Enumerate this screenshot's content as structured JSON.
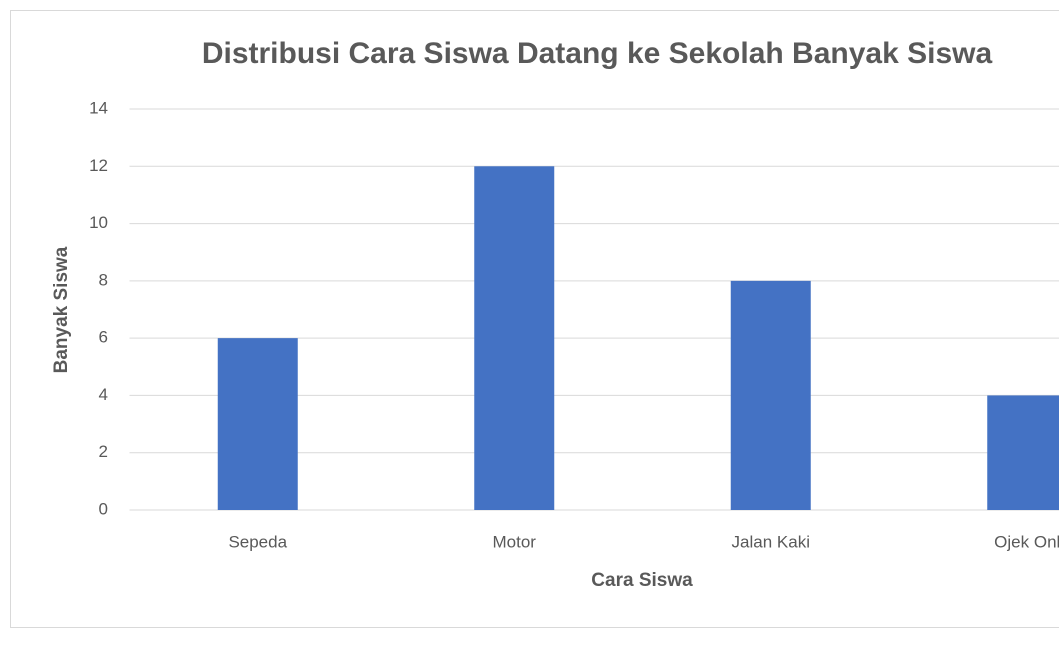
{
  "chart_data": {
    "type": "bar",
    "title": "Distribusi Cara Siswa Datang ke Sekolah Banyak Siswa",
    "x_label": "Cara Siswa",
    "y_label": "Banyak Siswa",
    "categories": [
      "Sepeda",
      "Motor",
      "Jalan Kaki",
      "Ojek Onl"
    ],
    "values": [
      6,
      12,
      8,
      4
    ],
    "color": "#4472c4",
    "ylim": [
      0,
      14
    ],
    "yticks": [
      0,
      2,
      4,
      6,
      8,
      10,
      12,
      14
    ],
    "grid": true
  }
}
